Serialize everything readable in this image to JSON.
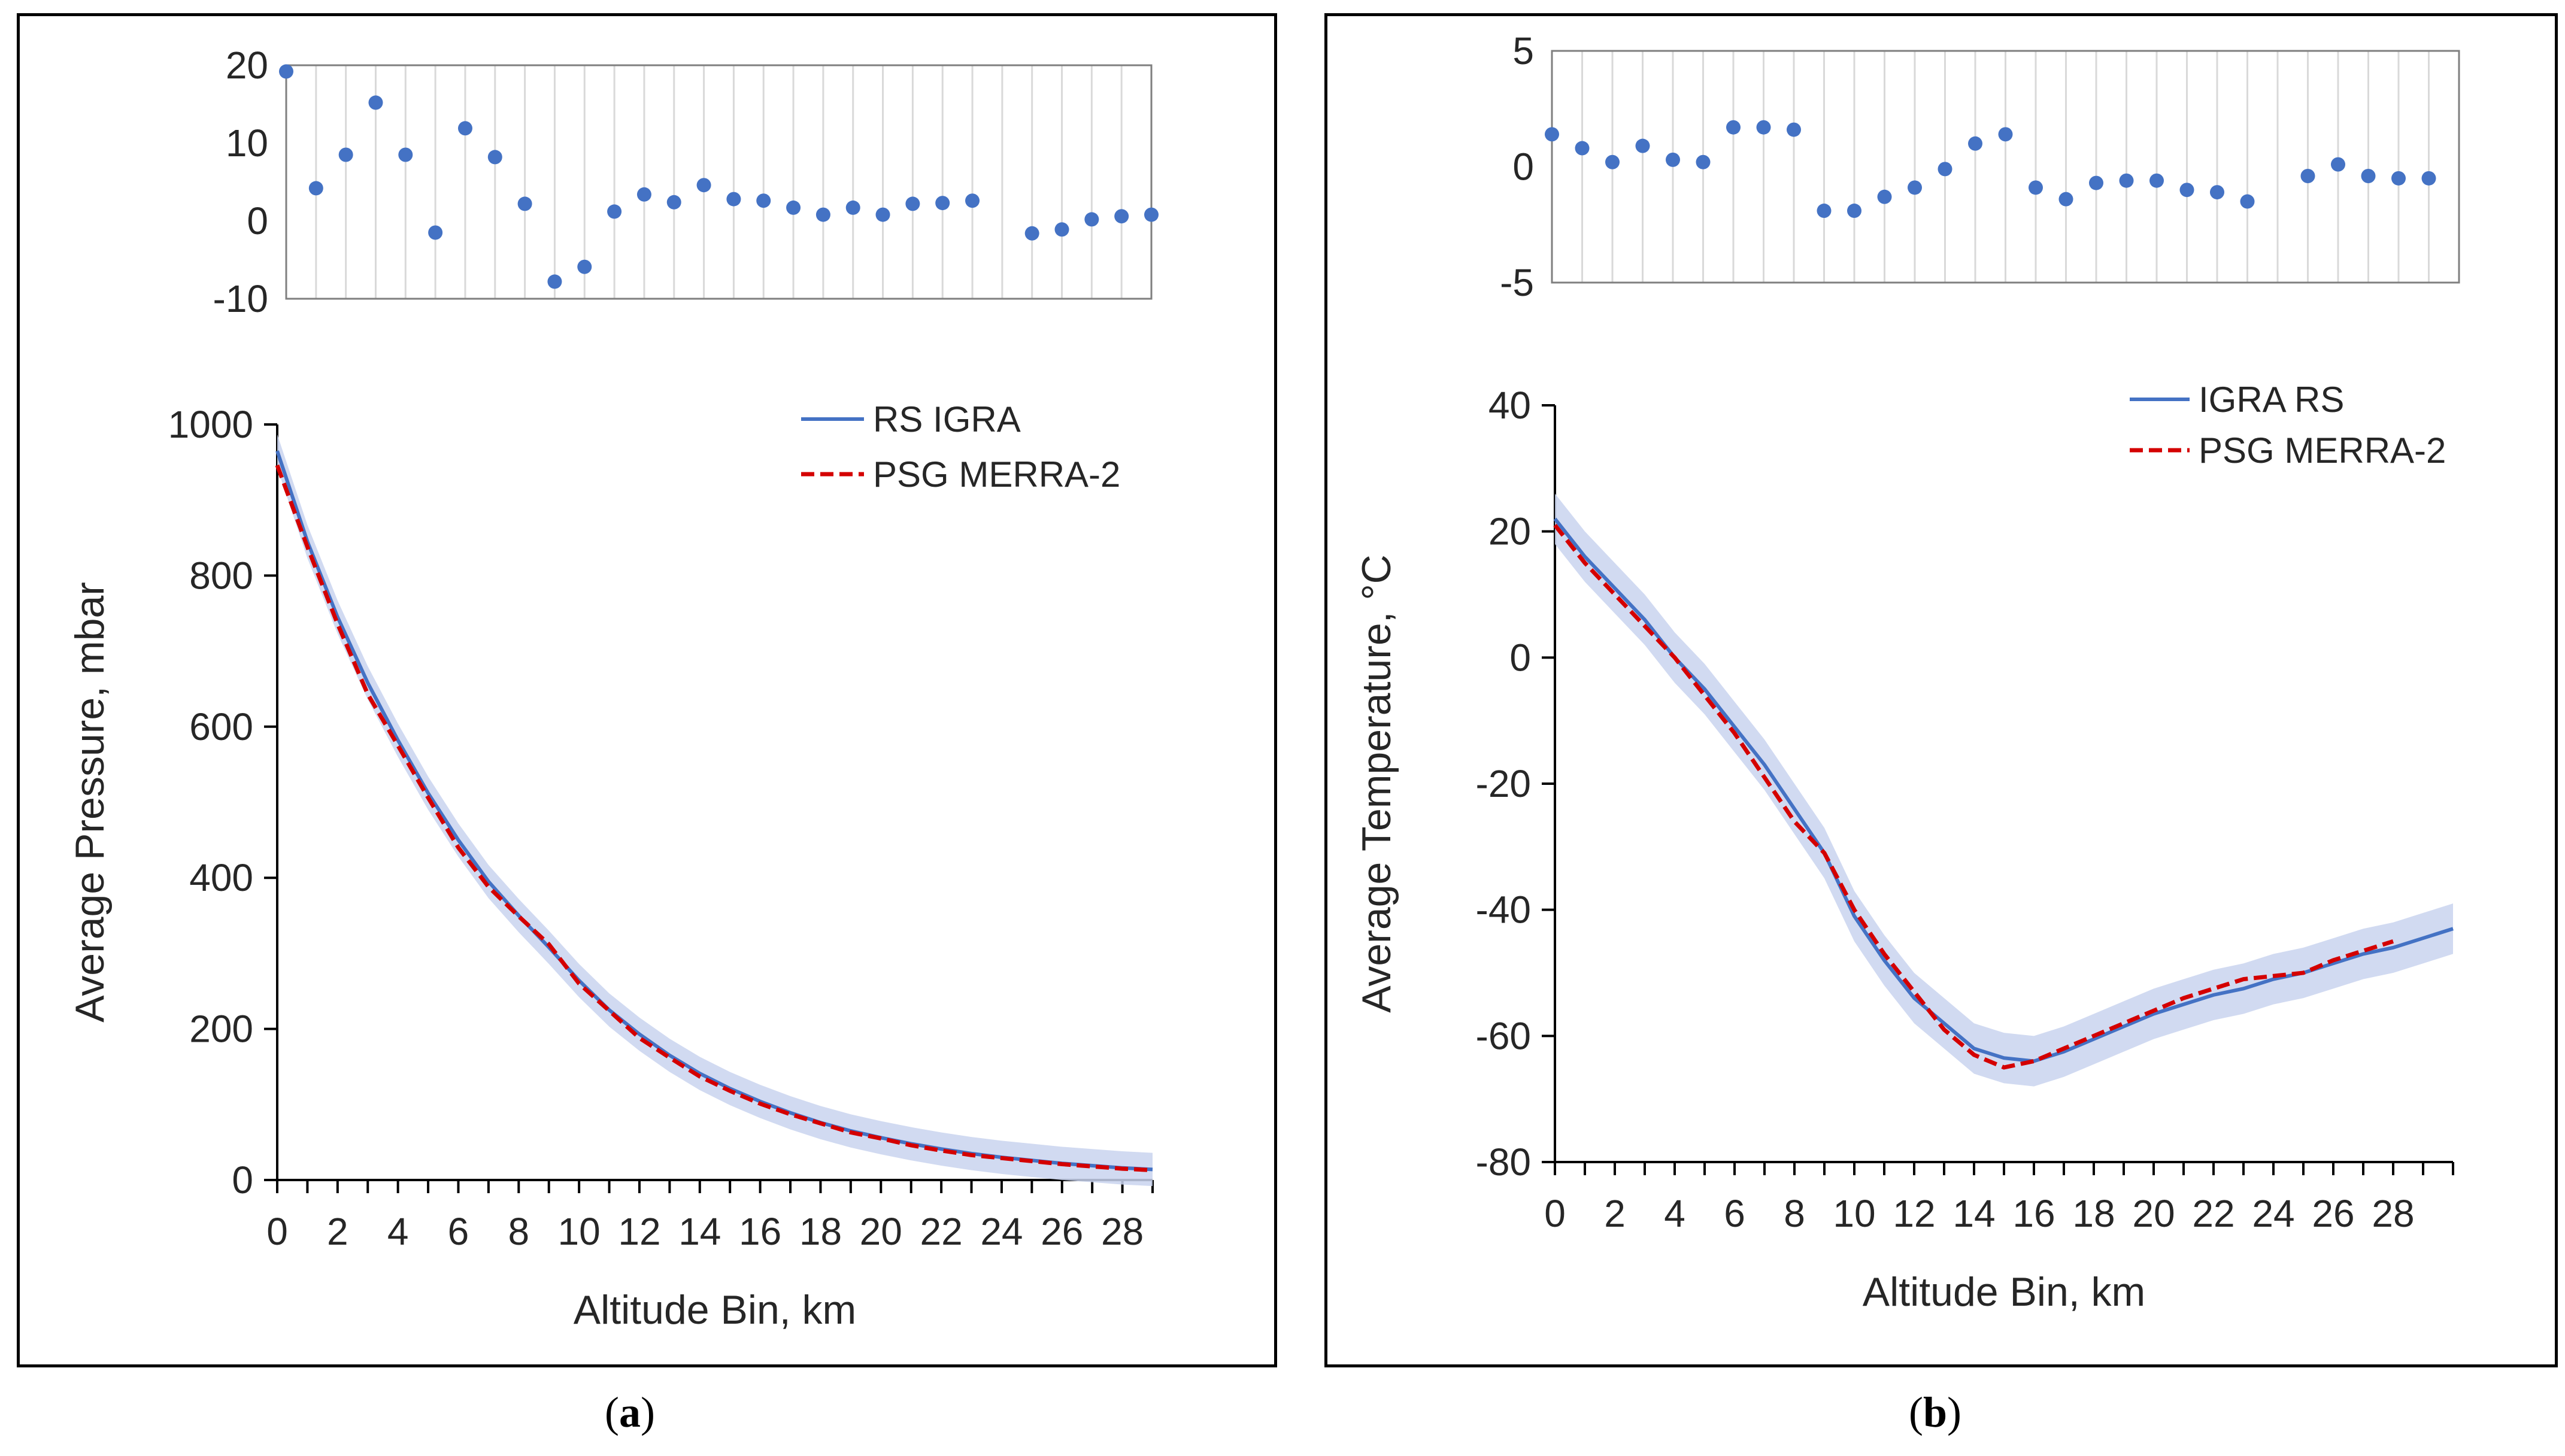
{
  "captions": {
    "a": "a",
    "b": "b"
  },
  "colors": {
    "rs": "#4472c4",
    "psg": "#d40000",
    "band": "#c9d4ef",
    "scatter": "#4472c4",
    "grid": "#d9d9d9"
  },
  "chart_data": [
    {
      "id": "a-top",
      "type": "scatter",
      "title": "",
      "xlabel": "",
      "ylabel": "",
      "xlim": [
        0,
        29
      ],
      "ylim": [
        -10,
        20
      ],
      "yticks": [
        20,
        10,
        0,
        -10
      ],
      "grid": true,
      "series": [
        {
          "name": "Pressure difference",
          "x": [
            0,
            1,
            2,
            3,
            4,
            5,
            6,
            7,
            8,
            9,
            10,
            11,
            12,
            13,
            14,
            15,
            16,
            17,
            18,
            19,
            20,
            21,
            22,
            23,
            25,
            26,
            27,
            28,
            29
          ],
          "values": [
            19.2,
            4.2,
            8.5,
            15.2,
            8.5,
            -1.5,
            11.9,
            8.2,
            2.2,
            -7.8,
            -5.9,
            1.2,
            3.4,
            2.4,
            4.6,
            2.8,
            2.6,
            1.7,
            0.8,
            1.7,
            0.8,
            2.2,
            2.3,
            2.6,
            -1.6,
            -1.1,
            0.2,
            0.6,
            0.8
          ]
        }
      ]
    },
    {
      "id": "a-main",
      "type": "line",
      "title": "",
      "xlabel": "Altitude Bin, km",
      "ylabel": "Average Pressure, mbar",
      "xlim": [
        0,
        29
      ],
      "ylim": [
        0,
        1000
      ],
      "xticks": [
        "0",
        "2",
        "4",
        "6",
        "8",
        "10",
        "12",
        "14",
        "16",
        "18",
        "20",
        "22",
        "24",
        "26",
        "28"
      ],
      "yticks": [
        "1000",
        "800",
        "600",
        "400",
        "200",
        "0"
      ],
      "legend_position": "top-right",
      "series": [
        {
          "name": "RS IGRA",
          "style": "solid",
          "x": [
            0,
            1,
            2,
            3,
            4,
            5,
            6,
            7,
            8,
            9,
            10,
            11,
            12,
            13,
            14,
            15,
            16,
            17,
            18,
            19,
            20,
            21,
            22,
            23,
            24,
            25,
            26,
            27,
            28,
            29
          ],
          "values": [
            965,
            845,
            745,
            658,
            582,
            512,
            450,
            395,
            350,
            308,
            264,
            225,
            193,
            165,
            141,
            121,
            104,
            89,
            76,
            65,
            56,
            48,
            41,
            35,
            30,
            26,
            22,
            19,
            16,
            14
          ],
          "band": 22
        },
        {
          "name": "PSG MERRA-2",
          "style": "dashed",
          "x": [
            0,
            1,
            2,
            3,
            4,
            5,
            6,
            7,
            8,
            9,
            10,
            11,
            12,
            13,
            14,
            15,
            16,
            17,
            18,
            19,
            20,
            21,
            22,
            23,
            25,
            26,
            27,
            28,
            29
          ],
          "values": [
            946,
            838,
            736,
            643,
            575,
            506,
            440,
            388,
            349,
            312,
            260,
            224,
            188,
            162,
            137,
            118,
            101,
            87,
            75,
            63,
            55,
            46,
            39,
            33,
            25,
            21,
            18,
            15,
            13
          ]
        }
      ]
    },
    {
      "id": "b-top",
      "type": "scatter",
      "title": "",
      "xlabel": "",
      "ylabel": "",
      "xlim": [
        0,
        30
      ],
      "ylim": [
        -5,
        5
      ],
      "yticks": [
        5,
        0,
        -5
      ],
      "grid": true,
      "series": [
        {
          "name": "Temperature difference",
          "x": [
            0,
            1,
            2,
            3,
            4,
            5,
            6,
            7,
            8,
            9,
            10,
            11,
            12,
            13,
            14,
            15,
            16,
            17,
            18,
            19,
            20,
            21,
            22,
            23,
            25,
            26,
            27,
            28,
            29
          ],
          "values": [
            1.4,
            0.8,
            0.2,
            0.9,
            0.3,
            0.2,
            1.7,
            1.7,
            1.6,
            -1.9,
            -1.9,
            -1.3,
            -0.9,
            -0.1,
            1.0,
            1.4,
            -0.9,
            -1.4,
            -0.7,
            -0.6,
            -0.6,
            -1.0,
            -1.1,
            -1.5,
            -0.4,
            0.1,
            -0.4,
            -0.5,
            -0.5
          ]
        }
      ]
    },
    {
      "id": "b-main",
      "type": "line",
      "title": "",
      "xlabel": "Altitude Bin, km",
      "ylabel": "Average Temperature, °C",
      "xlim": [
        0,
        30
      ],
      "ylim": [
        -80,
        40
      ],
      "xticks": [
        "0",
        "2",
        "4",
        "6",
        "8",
        "10",
        "12",
        "14",
        "16",
        "18",
        "20",
        "22",
        "24",
        "26",
        "28"
      ],
      "yticks": [
        "40",
        "20",
        "0",
        "-20",
        "-40",
        "-60",
        "-80"
      ],
      "legend_position": "top-right",
      "series": [
        {
          "name": "IGRA RS",
          "style": "solid",
          "x": [
            0,
            1,
            2,
            3,
            4,
            5,
            6,
            7,
            8,
            9,
            10,
            11,
            12,
            13,
            14,
            15,
            16,
            17,
            18,
            19,
            20,
            21,
            22,
            23,
            24,
            25,
            26,
            27,
            28,
            29,
            30
          ],
          "values": [
            22,
            16,
            11,
            6,
            0,
            -5,
            -11,
            -17,
            -24,
            -31,
            -41,
            -48,
            -54,
            -58,
            -62,
            -63.5,
            -64,
            -62.5,
            -60.5,
            -58.5,
            -56.5,
            -55,
            -53.5,
            -52.5,
            -51,
            -50,
            -48.5,
            -47,
            -46,
            -44.5,
            -43
          ],
          "band": 4
        },
        {
          "name": "PSG MERRA-2",
          "style": "dashed",
          "x": [
            0,
            1,
            2,
            3,
            4,
            5,
            6,
            7,
            8,
            9,
            10,
            11,
            12,
            13,
            14,
            15,
            16,
            17,
            18,
            19,
            20,
            21,
            22,
            23,
            25,
            26,
            27,
            28
          ],
          "values": [
            21,
            15,
            10,
            5,
            0,
            -6,
            -12,
            -19,
            -26,
            -31,
            -40,
            -47,
            -53,
            -59,
            -63,
            -65,
            -64,
            -62,
            -60,
            -58,
            -56,
            -54,
            -52.5,
            -51,
            -50,
            -48,
            -46.5,
            -45
          ]
        }
      ]
    }
  ]
}
